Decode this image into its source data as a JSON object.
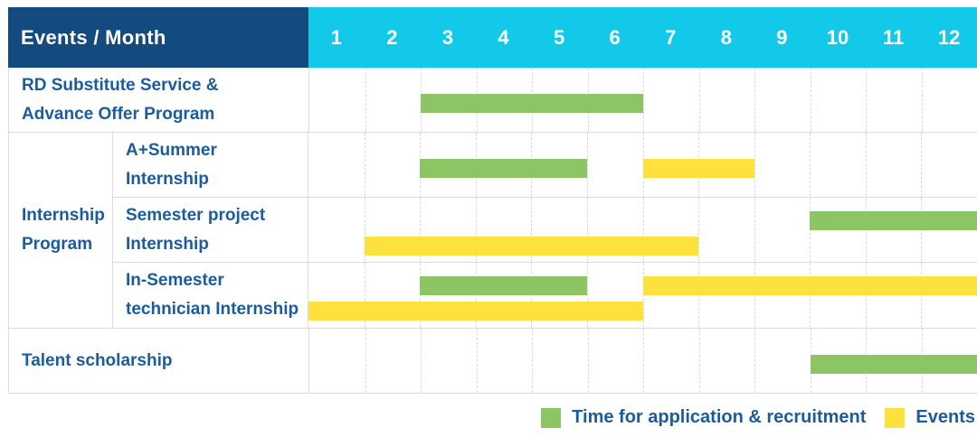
{
  "header": {
    "title": "Events / Month",
    "months": [
      "1",
      "2",
      "3",
      "4",
      "5",
      "6",
      "7",
      "8",
      "9",
      "10",
      "11",
      "12"
    ]
  },
  "body": {
    "rows": [
      {
        "kind": "plain",
        "name": "rd-substitute-service-row",
        "label_lines": [
          "RD Substitute Service &",
          "Advance Offer Program"
        ],
        "bars": [
          {
            "series": "recruitment",
            "start": 3,
            "end": 6,
            "lane": "single"
          }
        ]
      },
      {
        "kind": "group",
        "name": "internship-program-group",
        "group_label_lines": [
          "Internship",
          "Program"
        ],
        "subrows": [
          {
            "name": "a-plus-summer-internship-row",
            "label_lines": [
              "A+Summer",
              "Internship"
            ],
            "bars": [
              {
                "series": "recruitment",
                "start": 3,
                "end": 5,
                "lane": "single"
              },
              {
                "series": "event",
                "start": 7,
                "end": 8,
                "lane": "single"
              }
            ]
          },
          {
            "name": "semester-project-internship-row",
            "label_lines": [
              "Semester project",
              "Internship"
            ],
            "bars": [
              {
                "series": "recruitment",
                "start": 10,
                "end": 12,
                "lane": "top"
              },
              {
                "series": "event",
                "start": 2,
                "end": 7,
                "lane": "bottom"
              }
            ]
          },
          {
            "name": "in-semester-technician-internship-row",
            "label_lines": [
              "In-Semester",
              "technician Internship"
            ],
            "bars": [
              {
                "series": "recruitment",
                "start": 3,
                "end": 5,
                "lane": "top"
              },
              {
                "series": "event",
                "start": 7,
                "end": 12,
                "lane": "top"
              },
              {
                "series": "event",
                "start": 1,
                "end": 6,
                "lane": "bottom"
              }
            ]
          }
        ]
      },
      {
        "kind": "plain",
        "name": "talent-scholarship-row",
        "label_lines": [
          "Talent scholarship"
        ],
        "bars": [
          {
            "series": "recruitment",
            "start": 10,
            "end": 12,
            "lane": "single"
          }
        ]
      }
    ]
  },
  "legend": [
    {
      "series": "recruitment",
      "label": "Time for application & recruitment"
    },
    {
      "series": "event",
      "label": "Events"
    }
  ],
  "colors": {
    "header_navy": "#134A80",
    "header_cyan": "#12C9E9",
    "recruitment_green": "#8BC564",
    "event_yellow": "#FDE23E",
    "label_blue": "#1A5C9E",
    "grid_gray": "#DCDCDC"
  },
  "chart_data": {
    "type": "gantt",
    "title": "Events / Month",
    "x_axis": {
      "unit": "month",
      "ticks": [
        1,
        2,
        3,
        4,
        5,
        6,
        7,
        8,
        9,
        10,
        11,
        12
      ],
      "range": [
        1,
        12
      ]
    },
    "series": [
      {
        "key": "recruitment",
        "name": "Time for application & recruitment",
        "color": "#8BC564"
      },
      {
        "key": "event",
        "name": "Events",
        "color": "#FDE23E"
      }
    ],
    "tasks": [
      {
        "label": "RD Substitute Service & Advance Offer Program",
        "group": null,
        "spans": [
          {
            "series": "recruitment",
            "start_month": 3,
            "end_month": 6
          }
        ]
      },
      {
        "label": "A+Summer Internship",
        "group": "Internship Program",
        "spans": [
          {
            "series": "recruitment",
            "start_month": 3,
            "end_month": 5
          },
          {
            "series": "event",
            "start_month": 7,
            "end_month": 8
          }
        ]
      },
      {
        "label": "Semester project Internship",
        "group": "Internship Program",
        "spans": [
          {
            "series": "recruitment",
            "start_month": 10,
            "end_month": 12
          },
          {
            "series": "event",
            "start_month": 2,
            "end_month": 7
          }
        ]
      },
      {
        "label": "In-Semester technician Internship",
        "group": "Internship Program",
        "spans": [
          {
            "series": "recruitment",
            "start_month": 3,
            "end_month": 5
          },
          {
            "series": "event",
            "start_month": 7,
            "end_month": 12
          },
          {
            "series": "event",
            "start_month": 1,
            "end_month": 6
          }
        ]
      },
      {
        "label": "Talent scholarship",
        "group": null,
        "spans": [
          {
            "series": "recruitment",
            "start_month": 10,
            "end_month": 12
          }
        ]
      }
    ]
  }
}
